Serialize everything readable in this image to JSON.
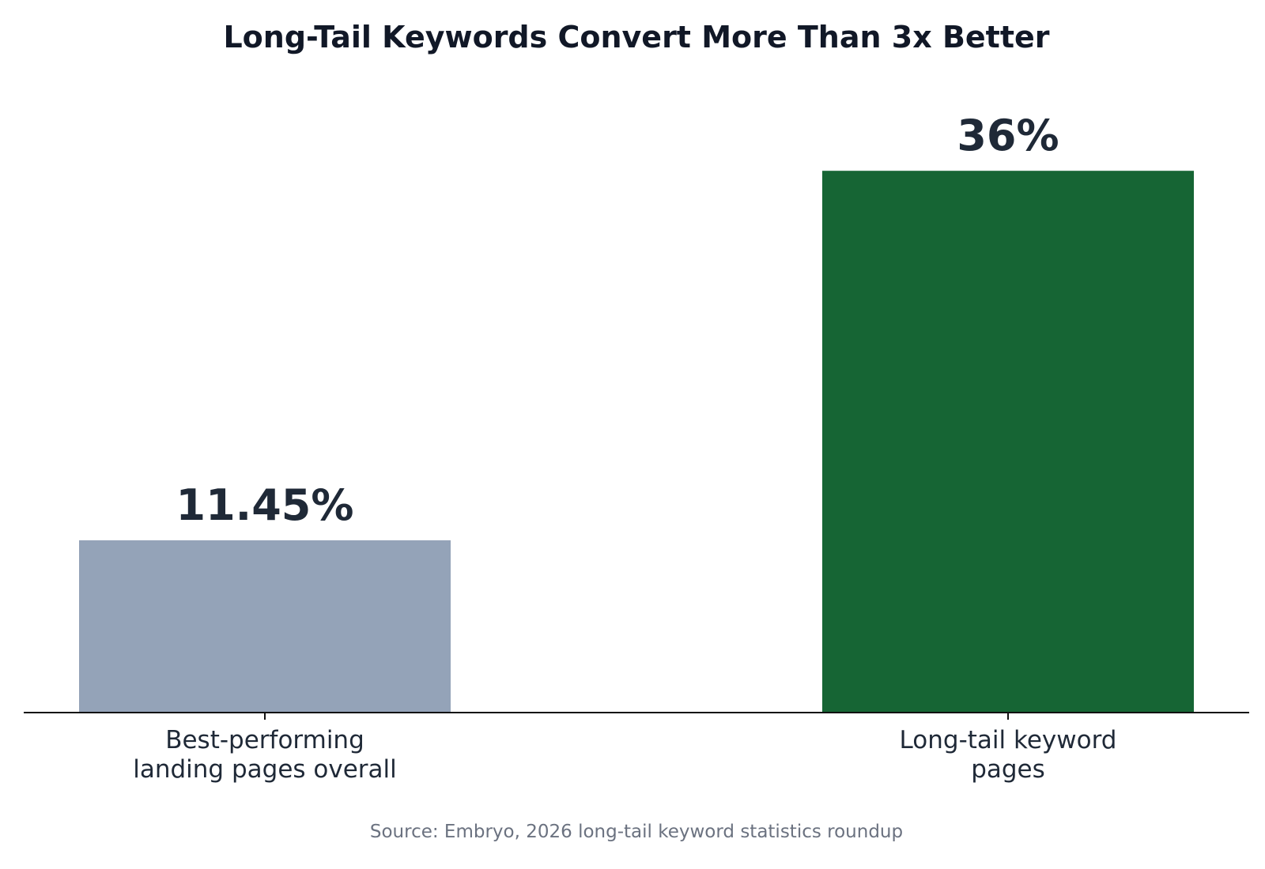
{
  "chart_data": {
    "type": "bar",
    "title": "Long-Tail Keywords Convert More Than 3x Better",
    "categories": [
      [
        "Best-performing",
        "landing pages overall"
      ],
      [
        "Long-tail keyword",
        "pages"
      ]
    ],
    "values": [
      11.45,
      36
    ],
    "value_labels": [
      "11.45%",
      "36%"
    ],
    "bar_colors": [
      "#94a3b8",
      "#166534"
    ],
    "ylim": [
      0,
      40
    ],
    "xlabel": "",
    "ylabel": "",
    "grid": false,
    "legend": "none",
    "source": "Source: Embryo, 2026 long-tail keyword statistics roundup"
  },
  "colors": {
    "title": "#111827",
    "value_label": "#1f2937",
    "tick_label": "#1f2937",
    "axis": "#111111",
    "source": "#6b7280"
  }
}
